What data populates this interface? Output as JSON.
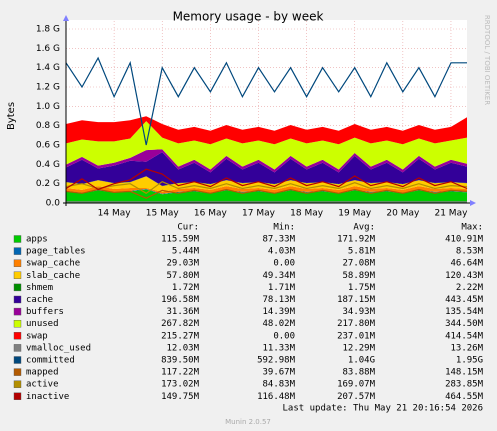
{
  "chart_data": {
    "type": "area",
    "title": "Memory usage - by week",
    "y_label": "Bytes",
    "side_label": "RRDTOOL / TOBI OETIKER",
    "ylim": [
      0,
      1.8
    ],
    "yticks": [
      {
        "value": 0,
        "label": "0.0"
      },
      {
        "value": 0.2,
        "label": "0.2 G"
      },
      {
        "value": 0.4,
        "label": "0.4 G"
      },
      {
        "value": 0.6,
        "label": "0.6 G"
      },
      {
        "value": 0.8,
        "label": "0.8 G"
      },
      {
        "value": 1.0,
        "label": "1.0 G"
      },
      {
        "value": 1.2,
        "label": "1.2 G"
      },
      {
        "value": 1.4,
        "label": "1.4 G"
      },
      {
        "value": 1.6,
        "label": "1.6 G"
      },
      {
        "value": 1.8,
        "label": "1.8 G"
      }
    ],
    "grid": true,
    "categories": [
      null,
      null,
      null,
      "14 May",
      null,
      null,
      "15 May",
      null,
      null,
      "16 May",
      null,
      null,
      "17 May",
      null,
      null,
      "18 May",
      null,
      null,
      "19 May",
      null,
      null,
      "20 May",
      null,
      null,
      "21 May",
      null
    ],
    "series": [
      {
        "name": "apps",
        "color": "#00cc00",
        "style": "area",
        "values": [
          0.12,
          0.1,
          0.13,
          0.11,
          0.12,
          0.14,
          0.09,
          0.11,
          0.12,
          0.1,
          0.13,
          0.11,
          0.12,
          0.1,
          0.13,
          0.11,
          0.12,
          0.1,
          0.13,
          0.11,
          0.12,
          0.1,
          0.13,
          0.11,
          0.12,
          0.11
        ]
      },
      {
        "name": "page_tables",
        "color": "#0066b3",
        "style": "area",
        "values": [
          0.005,
          0.005,
          0.005,
          0.005,
          0.005,
          0.005,
          0.005,
          0.005,
          0.005,
          0.005,
          0.005,
          0.005,
          0.005,
          0.005,
          0.005,
          0.005,
          0.005,
          0.005,
          0.005,
          0.005,
          0.005,
          0.005,
          0.005,
          0.005,
          0.005,
          0.005
        ]
      },
      {
        "name": "swap_cache",
        "color": "#ff8000",
        "style": "area",
        "values": [
          0.03,
          0.03,
          0.04,
          0.03,
          0.03,
          0.01,
          0.02,
          0.03,
          0.03,
          0.03,
          0.04,
          0.03,
          0.03,
          0.03,
          0.04,
          0.03,
          0.03,
          0.03,
          0.04,
          0.03,
          0.03,
          0.03,
          0.04,
          0.03,
          0.03,
          0.03
        ]
      },
      {
        "name": "slab_cache",
        "color": "#ffcc00",
        "style": "area",
        "values": [
          0.06,
          0.06,
          0.06,
          0.06,
          0.06,
          0.12,
          0.06,
          0.06,
          0.06,
          0.06,
          0.06,
          0.06,
          0.06,
          0.06,
          0.06,
          0.06,
          0.06,
          0.06,
          0.06,
          0.06,
          0.06,
          0.06,
          0.06,
          0.06,
          0.06,
          0.06
        ]
      },
      {
        "name": "shmem",
        "color": "#008f00",
        "style": "area",
        "values": [
          0.002,
          0.002,
          0.002,
          0.002,
          0.002,
          0.002,
          0.002,
          0.002,
          0.002,
          0.002,
          0.002,
          0.002,
          0.002,
          0.002,
          0.002,
          0.002,
          0.002,
          0.002,
          0.002,
          0.002,
          0.002,
          0.002,
          0.002,
          0.002,
          0.002,
          0.002
        ]
      },
      {
        "name": "cache",
        "color": "#330099",
        "style": "area",
        "values": [
          0.15,
          0.25,
          0.12,
          0.18,
          0.22,
          0.15,
          0.35,
          0.14,
          0.2,
          0.12,
          0.22,
          0.14,
          0.2,
          0.12,
          0.22,
          0.14,
          0.2,
          0.12,
          0.25,
          0.14,
          0.2,
          0.12,
          0.22,
          0.14,
          0.2,
          0.17
        ]
      },
      {
        "name": "buffers",
        "color": "#990099",
        "style": "area",
        "values": [
          0.03,
          0.03,
          0.03,
          0.03,
          0.03,
          0.12,
          0.03,
          0.03,
          0.03,
          0.03,
          0.03,
          0.03,
          0.03,
          0.03,
          0.03,
          0.03,
          0.03,
          0.03,
          0.03,
          0.03,
          0.03,
          0.03,
          0.03,
          0.03,
          0.03,
          0.03
        ]
      },
      {
        "name": "unused",
        "color": "#ccff00",
        "style": "area",
        "values": [
          0.22,
          0.18,
          0.25,
          0.22,
          0.2,
          0.3,
          0.12,
          0.24,
          0.2,
          0.26,
          0.18,
          0.24,
          0.2,
          0.26,
          0.18,
          0.24,
          0.2,
          0.26,
          0.16,
          0.24,
          0.2,
          0.26,
          0.18,
          0.24,
          0.2,
          0.27
        ]
      },
      {
        "name": "swap",
        "color": "#ff0000",
        "style": "area",
        "values": [
          0.2,
          0.2,
          0.2,
          0.2,
          0.19,
          0.05,
          0.14,
          0.14,
          0.14,
          0.14,
          0.14,
          0.14,
          0.14,
          0.14,
          0.14,
          0.14,
          0.14,
          0.14,
          0.14,
          0.14,
          0.14,
          0.14,
          0.14,
          0.14,
          0.14,
          0.21
        ]
      },
      {
        "name": "vmalloc_used",
        "color": "#808080",
        "style": "line",
        "values": [
          0.012,
          0.012,
          0.012,
          0.012,
          0.012,
          0.012,
          0.012,
          0.012,
          0.012,
          0.012,
          0.012,
          0.012,
          0.012,
          0.012,
          0.012,
          0.012,
          0.012,
          0.012,
          0.012,
          0.012,
          0.012,
          0.012,
          0.012,
          0.012,
          0.012,
          0.012
        ]
      },
      {
        "name": "committed",
        "color": "#00487d",
        "style": "line",
        "values": [
          1.45,
          1.2,
          1.5,
          1.1,
          1.45,
          0.6,
          1.4,
          1.1,
          1.4,
          1.15,
          1.45,
          1.1,
          1.4,
          1.15,
          1.4,
          1.1,
          1.4,
          1.15,
          1.4,
          1.1,
          1.45,
          1.15,
          1.4,
          1.1,
          1.45,
          1.45
        ]
      },
      {
        "name": "mapped",
        "color": "#b35a00",
        "style": "line",
        "values": [
          0.12,
          0.1,
          0.14,
          0.11,
          0.12,
          0.05,
          0.13,
          0.1,
          0.13,
          0.1,
          0.14,
          0.1,
          0.13,
          0.1,
          0.14,
          0.1,
          0.13,
          0.1,
          0.14,
          0.1,
          0.13,
          0.1,
          0.14,
          0.1,
          0.13,
          0.12
        ]
      },
      {
        "name": "active",
        "color": "#b38f00",
        "style": "line",
        "values": [
          0.17,
          0.2,
          0.15,
          0.18,
          0.2,
          0.1,
          0.22,
          0.15,
          0.18,
          0.15,
          0.2,
          0.15,
          0.18,
          0.15,
          0.2,
          0.15,
          0.18,
          0.15,
          0.21,
          0.15,
          0.18,
          0.15,
          0.2,
          0.15,
          0.18,
          0.17
        ]
      },
      {
        "name": "inactive",
        "color": "#b30000",
        "style": "line",
        "values": [
          0.15,
          0.25,
          0.14,
          0.2,
          0.24,
          0.35,
          0.3,
          0.18,
          0.22,
          0.17,
          0.26,
          0.18,
          0.22,
          0.17,
          0.26,
          0.18,
          0.22,
          0.17,
          0.28,
          0.18,
          0.22,
          0.17,
          0.26,
          0.18,
          0.22,
          0.15
        ]
      }
    ],
    "legend_table": {
      "headers": [
        "Cur:",
        "Min:",
        "Avg:",
        "Max:"
      ],
      "rows": [
        [
          "115.59M",
          "87.33M",
          "171.92M",
          "410.91M"
        ],
        [
          "5.44M",
          "4.03M",
          "5.81M",
          "8.53M"
        ],
        [
          "29.03M",
          "0.00",
          "27.08M",
          "46.64M"
        ],
        [
          "57.80M",
          "49.34M",
          "58.89M",
          "120.43M"
        ],
        [
          "1.72M",
          "1.71M",
          "1.75M",
          "2.22M"
        ],
        [
          "196.58M",
          "78.13M",
          "187.15M",
          "443.45M"
        ],
        [
          "31.36M",
          "14.39M",
          "34.93M",
          "135.54M"
        ],
        [
          "267.82M",
          "48.02M",
          "217.80M",
          "344.50M"
        ],
        [
          "215.27M",
          "0.00",
          "237.01M",
          "414.54M"
        ],
        [
          "12.03M",
          "11.33M",
          "12.29M",
          "13.26M"
        ],
        [
          "839.50M",
          "592.98M",
          "1.04G",
          "1.95G"
        ],
        [
          "117.22M",
          "39.67M",
          "83.88M",
          "148.15M"
        ],
        [
          "173.02M",
          "84.83M",
          "169.07M",
          "283.85M"
        ],
        [
          "149.75M",
          "116.48M",
          "207.57M",
          "464.55M"
        ]
      ]
    },
    "last_update": "Last update: Thu May 21 20:16:54 2026",
    "footer": "Munin 2.0.57"
  }
}
